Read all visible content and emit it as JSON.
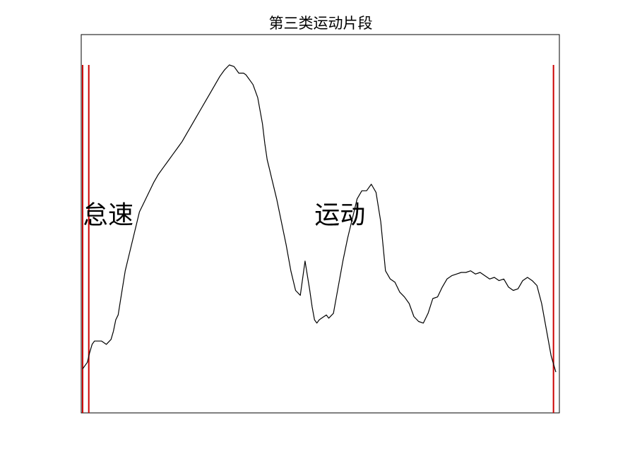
{
  "chart_data": {
    "type": "line",
    "title": "第三类运动片段",
    "xlabel": "",
    "ylabel": "",
    "axis_ticks_shown": false,
    "grid": false,
    "xlim": [
      0,
      100
    ],
    "ylim": [
      0,
      100
    ],
    "series": [
      {
        "name": "",
        "color": "#000000",
        "x": [
          0,
          1,
          1.5,
          2,
          2.5,
          3,
          4,
          5,
          6,
          6.5,
          7,
          7.5,
          8,
          9,
          10,
          11,
          12,
          13,
          14,
          15,
          16,
          17,
          18,
          19,
          20,
          21,
          22,
          23,
          24,
          25,
          26,
          27,
          28,
          29,
          30,
          31,
          32,
          33,
          34,
          34.5,
          35,
          35.5,
          36,
          37,
          38,
          38.5,
          39,
          39.5,
          40,
          41,
          42,
          43,
          44,
          45,
          46,
          47,
          48,
          48.5,
          49,
          49.5,
          50,
          50.5,
          51,
          51.5,
          52,
          53,
          54,
          55,
          56,
          57,
          58,
          59,
          60,
          61,
          62,
          63,
          64,
          65,
          66,
          67,
          68,
          69,
          70,
          71,
          72,
          73,
          74,
          75,
          76,
          77,
          78,
          79,
          80,
          81,
          82,
          83,
          84,
          85,
          86,
          87,
          88,
          89,
          90,
          91,
          92,
          93,
          94,
          95,
          96,
          97,
          98,
          99,
          100
        ],
        "values": [
          7,
          9,
          12,
          14.5,
          15.5,
          15.5,
          15.5,
          14.5,
          16,
          18.5,
          22,
          23.5,
          28,
          37,
          43,
          49,
          55,
          58,
          61,
          64,
          66.5,
          68.5,
          70.5,
          72.5,
          74.5,
          76.5,
          79,
          81.5,
          84,
          86.5,
          89,
          91.5,
          94,
          96.5,
          98.5,
          100,
          99.5,
          97.5,
          97.5,
          97,
          96,
          95,
          94,
          90,
          82,
          76,
          71,
          68,
          65,
          59,
          52,
          45,
          37,
          31,
          29.5,
          40,
          31,
          26,
          22,
          21,
          22,
          22.5,
          23,
          23.5,
          22.5,
          24,
          32,
          40,
          47,
          53,
          59,
          61.5,
          61.5,
          63.5,
          61,
          52,
          37,
          34.5,
          33.5,
          30.5,
          29,
          27,
          23,
          21.5,
          21,
          24,
          28.5,
          29,
          32,
          34.5,
          35.5,
          36,
          36.5,
          36.5,
          37,
          36,
          36.5,
          35.5,
          34.5,
          35,
          34,
          34.5,
          32,
          31,
          31.5,
          34,
          35,
          34,
          32.5,
          27,
          19,
          11,
          6
        ],
        "ylim": [
          0,
          100
        ]
      }
    ],
    "boundaries": {
      "color": "#cc0000",
      "positions": [
        0,
        1,
        99.5
      ]
    },
    "annotations": [
      {
        "text": "怠速",
        "x": 0,
        "y": 51.5
      },
      {
        "text": "运动",
        "x": 49,
        "y": 51.5
      }
    ]
  }
}
